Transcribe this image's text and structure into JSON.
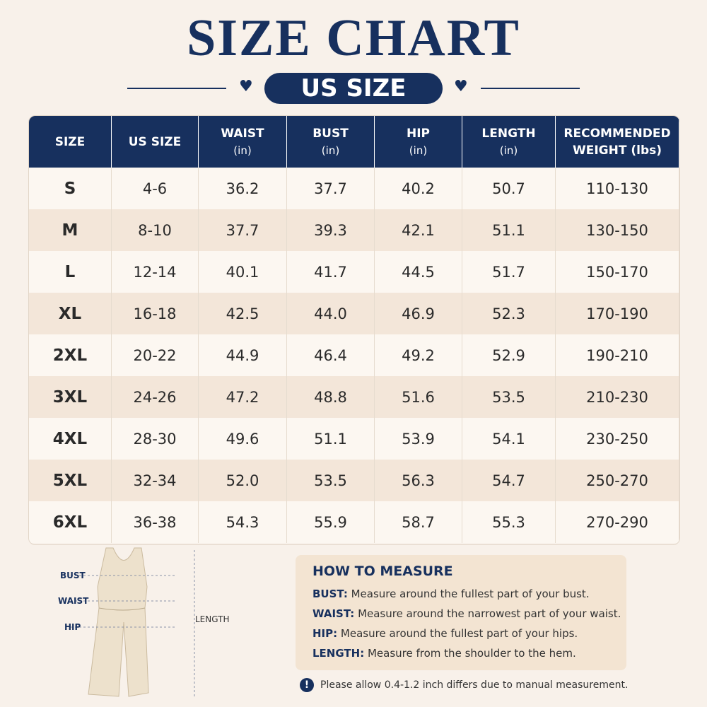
{
  "header": {
    "title": "SIZE CHART",
    "subtitle": "US SIZE"
  },
  "table": {
    "headers": [
      [
        "SIZE"
      ],
      [
        "US SIZE"
      ],
      [
        "WAIST",
        "(in)"
      ],
      [
        "BUST",
        "(in)"
      ],
      [
        "HIP",
        "(in)"
      ],
      [
        "LENGTH",
        "(in)"
      ],
      [
        "RECOMMENDED",
        "WEIGHT (lbs)"
      ]
    ],
    "rows": [
      [
        "S",
        "4-6",
        "36.2",
        "37.7",
        "40.2",
        "50.7",
        "110-130"
      ],
      [
        "M",
        "8-10",
        "37.7",
        "39.3",
        "42.1",
        "51.1",
        "130-150"
      ],
      [
        "L",
        "12-14",
        "40.1",
        "41.7",
        "44.5",
        "51.7",
        "150-170"
      ],
      [
        "XL",
        "16-18",
        "42.5",
        "44.0",
        "46.9",
        "52.3",
        "170-190"
      ],
      [
        "2XL",
        "20-22",
        "44.9",
        "46.4",
        "49.2",
        "52.9",
        "190-210"
      ],
      [
        "3XL",
        "24-26",
        "47.2",
        "48.8",
        "51.6",
        "53.5",
        "210-230"
      ],
      [
        "4XL",
        "28-30",
        "49.6",
        "51.1",
        "53.9",
        "54.1",
        "230-250"
      ],
      [
        "5XL",
        "32-34",
        "52.0",
        "53.5",
        "56.3",
        "54.7",
        "250-270"
      ],
      [
        "6XL",
        "36-38",
        "54.3",
        "55.9",
        "58.7",
        "55.3",
        "270-290"
      ]
    ]
  },
  "diagram": {
    "labels": [
      "BUST",
      "WAIST",
      "HIP"
    ],
    "length": "LENGTH"
  },
  "measure": {
    "title": "HOW TO MEASURE",
    "items": [
      {
        "term": "BUST:",
        "text": "Measure around the fullest part of your bust."
      },
      {
        "term": "WAIST:",
        "text": "Measure around the narrowest part of your waist."
      },
      {
        "term": "HIP:",
        "text": "Measure around the fullest part of your hips."
      },
      {
        "term": "LENGTH:",
        "text": "Measure from the shoulder to the hem."
      }
    ]
  },
  "note": "Please allow 0.4-1.2 inch differs due to manual measurement."
}
